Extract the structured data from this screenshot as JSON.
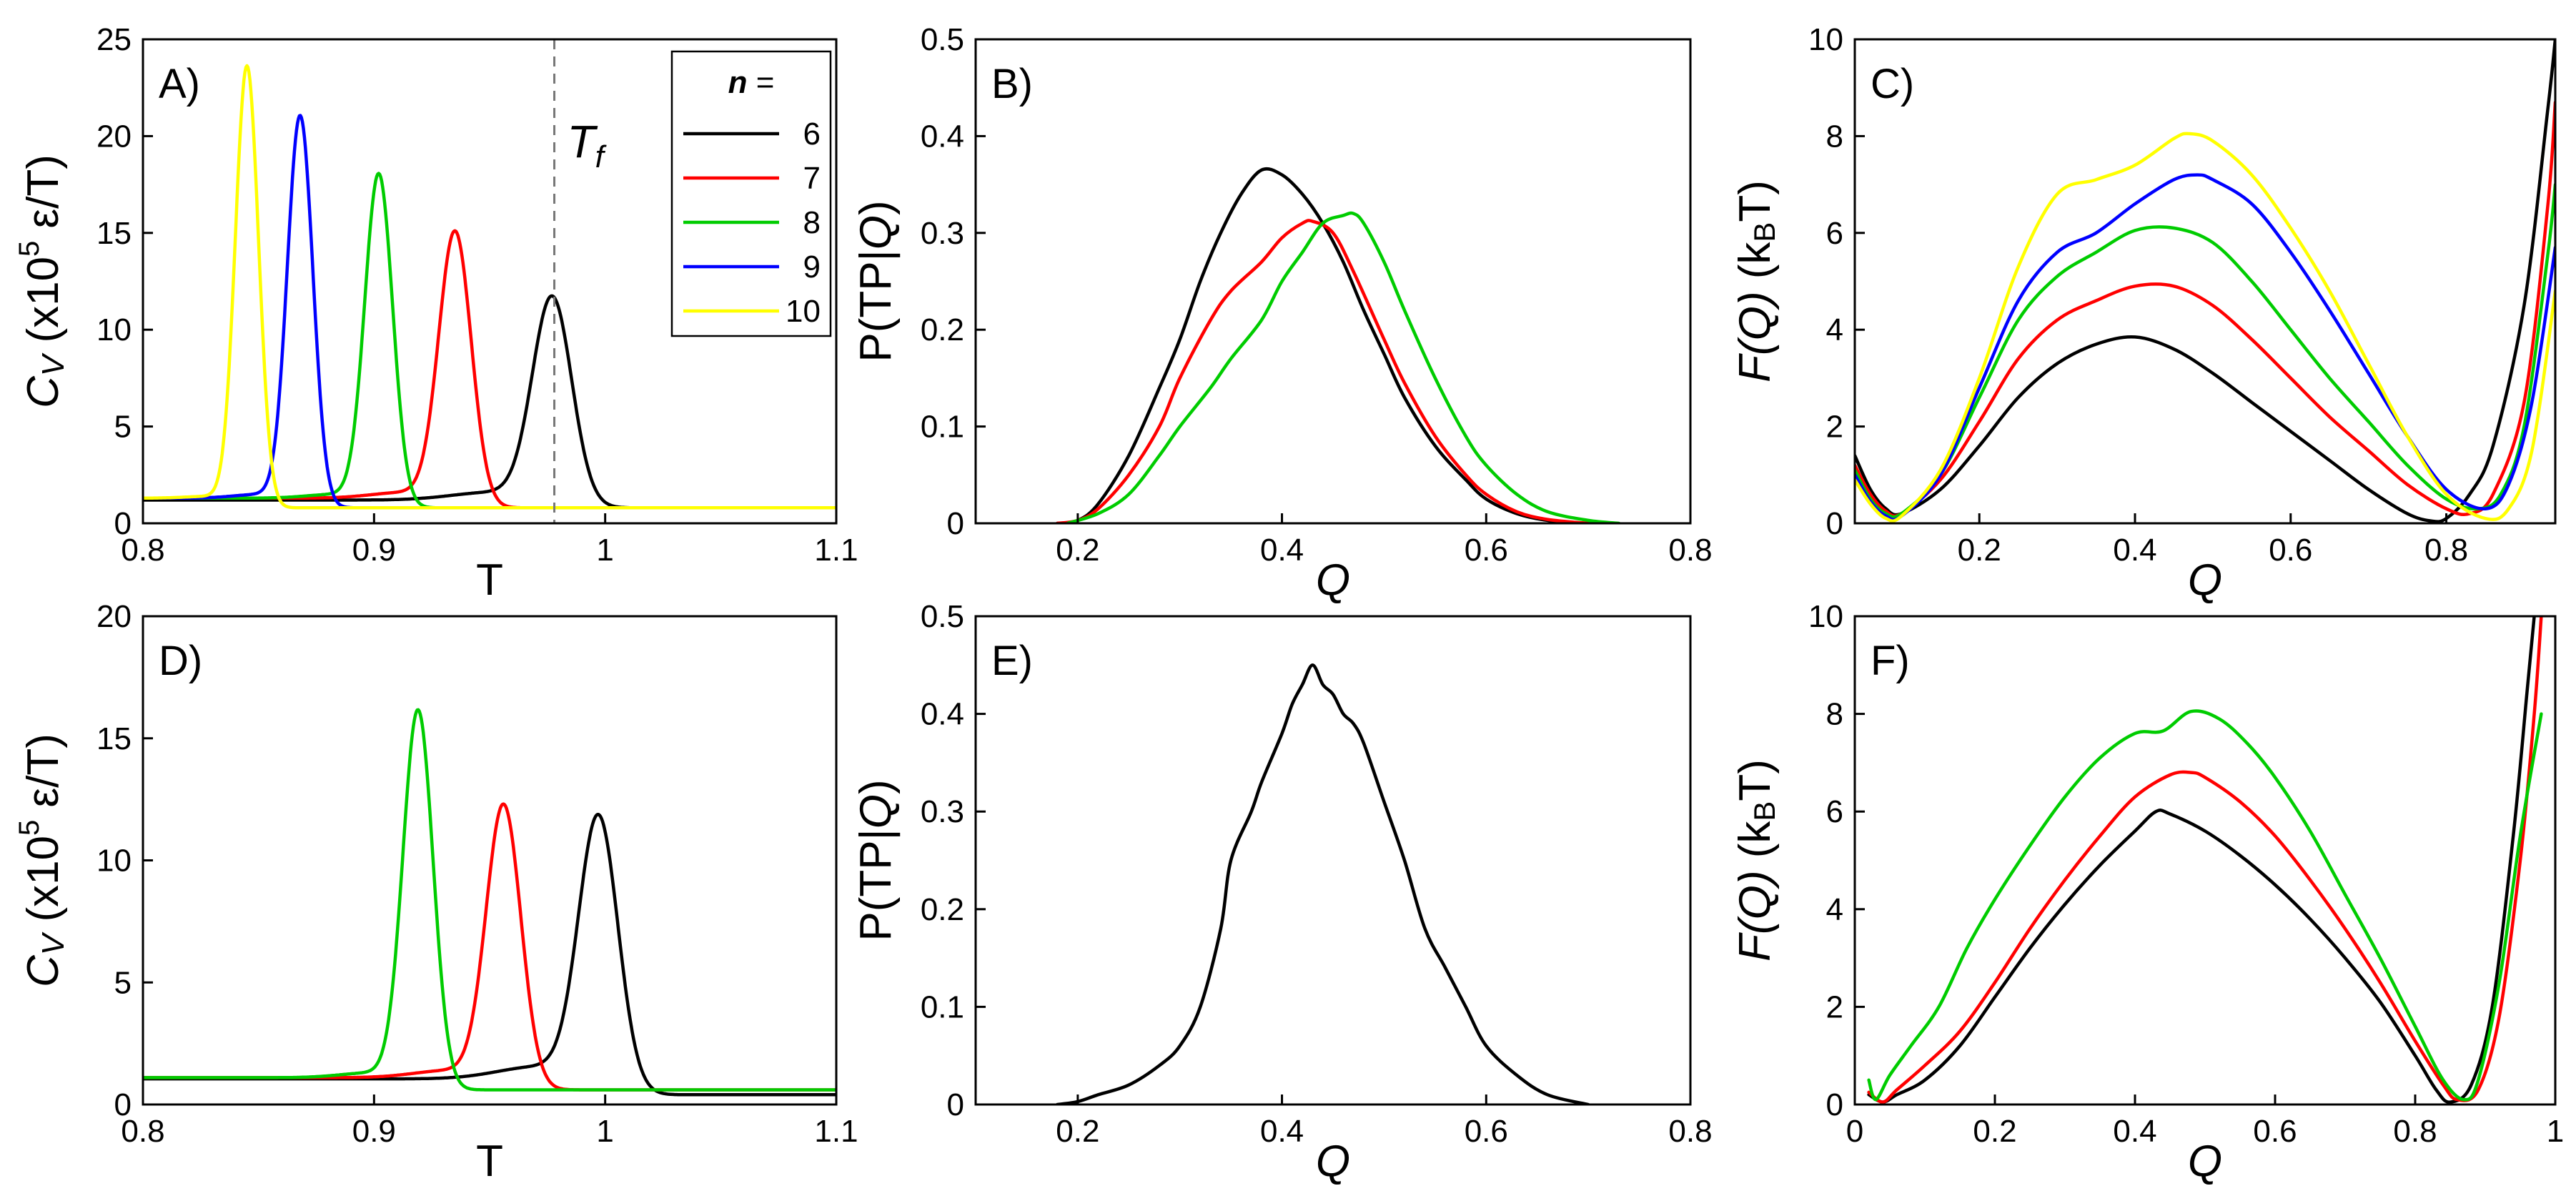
{
  "figure": {
    "colors": {
      "n6": "#000000",
      "n7": "#ff0000",
      "n8": "#00cc00",
      "n9": "#0000ff",
      "n10": "#ffff00",
      "frame": "#000000",
      "dash": "#777777"
    },
    "legend": {
      "title": "n =",
      "placement": "top-right of panel A"
    },
    "annotation": {
      "text": "Tf",
      "panel": "A",
      "x": 0.978
    }
  },
  "chart_data": [
    {
      "id": "A",
      "panel_label": "A)",
      "type": "line",
      "xlabel": "T",
      "ylabel": "CV (x10^5 ε/T)",
      "xlim": [
        0.8,
        1.1
      ],
      "ylim": [
        0,
        25
      ],
      "xticks": [
        "0.8",
        "0.9",
        "1",
        "1.1"
      ],
      "yticks": [
        "0",
        "5",
        "10",
        "15",
        "20",
        "25"
      ],
      "series": [
        {
          "name": "6",
          "color": "#000000",
          "peak": {
            "x": 0.977,
            "y": 11.6
          },
          "width": 0.0085,
          "baseline_left": 1.2,
          "baseline_right": 0.8,
          "shoulder": 0.4
        },
        {
          "name": "7",
          "color": "#ff0000",
          "peak": {
            "x": 0.935,
            "y": 15.0
          },
          "width": 0.007,
          "baseline_left": 1.3,
          "baseline_right": 0.8,
          "shoulder": 0.3
        },
        {
          "name": "8",
          "color": "#00cc00",
          "peak": {
            "x": 0.902,
            "y": 18.0
          },
          "width": 0.006,
          "baseline_left": 1.3,
          "baseline_right": 0.8,
          "shoulder": 0.2
        },
        {
          "name": "9",
          "color": "#0000ff",
          "peak": {
            "x": 0.868,
            "y": 21.0
          },
          "width": 0.0055,
          "baseline_left": 1.3,
          "baseline_right": 0.8,
          "shoulder": 0.2
        },
        {
          "name": "10",
          "color": "#ffff00",
          "peak": {
            "x": 0.845,
            "y": 23.6
          },
          "width": 0.005,
          "baseline_left": 1.3,
          "baseline_right": 0.8,
          "shoulder": 0.1
        }
      ]
    },
    {
      "id": "B",
      "panel_label": "B)",
      "type": "line",
      "xlabel": "Q",
      "ylabel": "P(TP|Q)",
      "xlim": [
        0.1,
        0.8
      ],
      "ylim": [
        0,
        0.5
      ],
      "xticks": [
        "0.2",
        "0.4",
        "0.6",
        "0.8"
      ],
      "yticks": [
        "0",
        "0.1",
        "0.2",
        "0.3",
        "0.4",
        "0.5"
      ],
      "series": [
        {
          "name": "6",
          "color": "#000000",
          "x": [
            0.18,
            0.2,
            0.22,
            0.25,
            0.28,
            0.3,
            0.32,
            0.34,
            0.36,
            0.38,
            0.4,
            0.42,
            0.44,
            0.46,
            0.48,
            0.5,
            0.52,
            0.55,
            0.58,
            0.6,
            0.63,
            0.66,
            0.7
          ],
          "y": [
            0,
            0.003,
            0.02,
            0.07,
            0.14,
            0.19,
            0.25,
            0.3,
            0.34,
            0.365,
            0.36,
            0.34,
            0.31,
            0.27,
            0.22,
            0.175,
            0.13,
            0.08,
            0.045,
            0.025,
            0.01,
            0.003,
            0
          ]
        },
        {
          "name": "7",
          "color": "#ff0000",
          "x": [
            0.18,
            0.2,
            0.22,
            0.25,
            0.28,
            0.3,
            0.33,
            0.35,
            0.38,
            0.4,
            0.42,
            0.43,
            0.45,
            0.47,
            0.5,
            0.52,
            0.55,
            0.58,
            0.6,
            0.63,
            0.66,
            0.7
          ],
          "y": [
            0,
            0.003,
            0.015,
            0.05,
            0.1,
            0.15,
            0.21,
            0.24,
            0.27,
            0.295,
            0.31,
            0.312,
            0.3,
            0.26,
            0.19,
            0.145,
            0.09,
            0.05,
            0.03,
            0.012,
            0.004,
            0
          ]
        },
        {
          "name": "8",
          "color": "#00cc00",
          "x": [
            0.19,
            0.22,
            0.25,
            0.28,
            0.3,
            0.33,
            0.35,
            0.38,
            0.4,
            0.42,
            0.44,
            0.46,
            0.47,
            0.48,
            0.5,
            0.52,
            0.55,
            0.58,
            0.6,
            0.63,
            0.66,
            0.7,
            0.73
          ],
          "y": [
            0,
            0.01,
            0.03,
            0.07,
            0.1,
            0.14,
            0.17,
            0.21,
            0.25,
            0.28,
            0.31,
            0.318,
            0.32,
            0.31,
            0.27,
            0.22,
            0.15,
            0.09,
            0.06,
            0.03,
            0.012,
            0.003,
            0
          ]
        }
      ]
    },
    {
      "id": "C",
      "panel_label": "C)",
      "type": "line",
      "xlabel": "Q",
      "ylabel": "F(Q) (kBT)",
      "xlim": [
        0.04,
        0.94
      ],
      "ylim": [
        0,
        10
      ],
      "xticks": [
        "0.2",
        "0.4",
        "0.6",
        "0.8"
      ],
      "yticks": [
        "0",
        "2",
        "4",
        "6",
        "8",
        "10"
      ],
      "series": [
        {
          "name": "6",
          "color": "#000000",
          "x": [
            0.04,
            0.06,
            0.08,
            0.1,
            0.15,
            0.2,
            0.25,
            0.3,
            0.35,
            0.4,
            0.45,
            0.5,
            0.55,
            0.6,
            0.65,
            0.7,
            0.75,
            0.78,
            0.8,
            0.83,
            0.86,
            0.9,
            0.93,
            0.94
          ],
          "y": [
            1.4,
            0.7,
            0.3,
            0.2,
            0.7,
            1.6,
            2.6,
            3.3,
            3.7,
            3.85,
            3.6,
            3.1,
            2.5,
            1.9,
            1.3,
            0.7,
            0.2,
            0.05,
            0.1,
            0.6,
            1.6,
            4.5,
            8.5,
            10
          ]
        },
        {
          "name": "7",
          "color": "#ff0000",
          "x": [
            0.04,
            0.06,
            0.08,
            0.1,
            0.15,
            0.2,
            0.25,
            0.3,
            0.35,
            0.4,
            0.45,
            0.5,
            0.55,
            0.6,
            0.65,
            0.7,
            0.75,
            0.8,
            0.83,
            0.86,
            0.9,
            0.93,
            0.94
          ],
          "y": [
            1.2,
            0.6,
            0.25,
            0.2,
            0.9,
            2.1,
            3.4,
            4.2,
            4.6,
            4.9,
            4.9,
            4.5,
            3.8,
            3.0,
            2.2,
            1.5,
            0.8,
            0.3,
            0.2,
            0.6,
            2.5,
            6.5,
            8.7
          ]
        },
        {
          "name": "8",
          "color": "#00cc00",
          "x": [
            0.04,
            0.06,
            0.08,
            0.1,
            0.15,
            0.2,
            0.25,
            0.3,
            0.35,
            0.4,
            0.45,
            0.5,
            0.55,
            0.6,
            0.65,
            0.7,
            0.75,
            0.8,
            0.84,
            0.87,
            0.9,
            0.93,
            0.94
          ],
          "y": [
            1.1,
            0.5,
            0.2,
            0.2,
            1.0,
            2.6,
            4.2,
            5.1,
            5.6,
            6.05,
            6.1,
            5.8,
            5.0,
            4.0,
            3.0,
            2.1,
            1.2,
            0.5,
            0.3,
            0.6,
            2.0,
            5.5,
            7.0
          ]
        },
        {
          "name": "9",
          "color": "#0000ff",
          "x": [
            0.04,
            0.06,
            0.08,
            0.1,
            0.15,
            0.2,
            0.25,
            0.3,
            0.35,
            0.4,
            0.45,
            0.48,
            0.5,
            0.55,
            0.6,
            0.65,
            0.7,
            0.75,
            0.8,
            0.85,
            0.88,
            0.91,
            0.94
          ],
          "y": [
            1.0,
            0.45,
            0.15,
            0.15,
            1.0,
            2.8,
            4.6,
            5.6,
            6.0,
            6.6,
            7.1,
            7.2,
            7.1,
            6.6,
            5.6,
            4.4,
            3.1,
            1.8,
            0.7,
            0.3,
            0.8,
            2.5,
            5.7
          ]
        },
        {
          "name": "10",
          "color": "#ffff00",
          "x": [
            0.04,
            0.06,
            0.08,
            0.1,
            0.15,
            0.2,
            0.25,
            0.3,
            0.35,
            0.4,
            0.45,
            0.47,
            0.5,
            0.55,
            0.6,
            0.65,
            0.7,
            0.75,
            0.8,
            0.85,
            0.88,
            0.91,
            0.94
          ],
          "y": [
            0.9,
            0.4,
            0.1,
            0.15,
            1.1,
            3.0,
            5.3,
            6.8,
            7.1,
            7.4,
            7.95,
            8.05,
            7.9,
            7.2,
            6.1,
            4.8,
            3.3,
            1.8,
            0.6,
            0.1,
            0.3,
            1.5,
            4.8
          ]
        }
      ]
    },
    {
      "id": "D",
      "panel_label": "D)",
      "type": "line",
      "xlabel": "T",
      "ylabel": "CV (x10^5 ε/T)",
      "xlim": [
        0.8,
        1.1
      ],
      "ylim": [
        0,
        20
      ],
      "xticks": [
        "0.8",
        "0.9",
        "1",
        "1.1"
      ],
      "yticks": [
        "0",
        "5",
        "10",
        "15",
        "20"
      ],
      "series": [
        {
          "name": "6",
          "color": "#000000",
          "peak": {
            "x": 0.997,
            "y": 11.7
          },
          "width": 0.0085,
          "baseline_left": 1.05,
          "baseline_right": 0.4,
          "shoulder": 0.5
        },
        {
          "name": "7",
          "color": "#ff0000",
          "peak": {
            "x": 0.956,
            "y": 12.2
          },
          "width": 0.0075,
          "baseline_left": 1.1,
          "baseline_right": 0.6,
          "shoulder": 0.3
        },
        {
          "name": "8",
          "color": "#00cc00",
          "peak": {
            "x": 0.919,
            "y": 16.1
          },
          "width": 0.0065,
          "baseline_left": 1.1,
          "baseline_right": 0.6,
          "shoulder": 0.2
        }
      ]
    },
    {
      "id": "E",
      "panel_label": "E)",
      "type": "line",
      "xlabel": "Q",
      "ylabel": "P(TP|Q)",
      "xlim": [
        0.1,
        0.8
      ],
      "ylim": [
        0,
        0.5
      ],
      "xticks": [
        "0.2",
        "0.4",
        "0.6",
        "0.8"
      ],
      "yticks": [
        "0",
        "0.1",
        "0.2",
        "0.3",
        "0.4",
        "0.5"
      ],
      "series": [
        {
          "name": "6",
          "color": "#000000",
          "x": [
            0.18,
            0.2,
            0.22,
            0.25,
            0.28,
            0.3,
            0.32,
            0.34,
            0.35,
            0.37,
            0.38,
            0.4,
            0.41,
            0.42,
            0.43,
            0.44,
            0.45,
            0.46,
            0.47,
            0.48,
            0.5,
            0.52,
            0.54,
            0.56,
            0.58,
            0.6,
            0.63,
            0.66,
            0.7
          ],
          "y": [
            0,
            0.003,
            0.01,
            0.02,
            0.04,
            0.06,
            0.1,
            0.18,
            0.25,
            0.3,
            0.33,
            0.38,
            0.41,
            0.43,
            0.45,
            0.43,
            0.42,
            0.4,
            0.39,
            0.37,
            0.31,
            0.25,
            0.18,
            0.14,
            0.1,
            0.06,
            0.03,
            0.01,
            0
          ]
        }
      ]
    },
    {
      "id": "F",
      "panel_label": "F)",
      "type": "line",
      "xlabel": "Q",
      "ylabel": "F(Q) (kBT)",
      "xlim": [
        0,
        1
      ],
      "ylim": [
        0,
        10
      ],
      "xticks": [
        "0",
        "0.2",
        "0.4",
        "0.6",
        "0.8",
        "1"
      ],
      "yticks": [
        "0",
        "2",
        "4",
        "6",
        "8",
        "10"
      ],
      "series": [
        {
          "name": "6",
          "color": "#000000",
          "x": [
            0.02,
            0.04,
            0.06,
            0.1,
            0.15,
            0.2,
            0.25,
            0.3,
            0.35,
            0.4,
            0.43,
            0.45,
            0.5,
            0.55,
            0.6,
            0.65,
            0.7,
            0.75,
            0.8,
            0.83,
            0.85,
            0.88,
            0.91,
            0.94,
            0.96,
            0.97
          ],
          "y": [
            0.2,
            0.05,
            0.2,
            0.5,
            1.2,
            2.2,
            3.2,
            4.1,
            4.9,
            5.6,
            6.0,
            5.95,
            5.6,
            5.1,
            4.5,
            3.8,
            3.0,
            2.1,
            1.0,
            0.3,
            0.05,
            0.4,
            2.0,
            5.5,
            8.5,
            10
          ]
        },
        {
          "name": "7",
          "color": "#ff0000",
          "x": [
            0.02,
            0.04,
            0.06,
            0.1,
            0.15,
            0.2,
            0.25,
            0.3,
            0.35,
            0.4,
            0.45,
            0.48,
            0.5,
            0.55,
            0.6,
            0.65,
            0.7,
            0.75,
            0.8,
            0.84,
            0.86,
            0.89,
            0.92,
            0.95,
            0.97,
            0.98
          ],
          "y": [
            0.25,
            0.05,
            0.3,
            0.8,
            1.5,
            2.5,
            3.6,
            4.6,
            5.5,
            6.3,
            6.75,
            6.8,
            6.7,
            6.2,
            5.5,
            4.6,
            3.6,
            2.5,
            1.3,
            0.4,
            0.1,
            0.3,
            1.8,
            5.0,
            8.0,
            10
          ]
        },
        {
          "name": "8",
          "color": "#00cc00",
          "x": [
            0.02,
            0.03,
            0.05,
            0.08,
            0.12,
            0.16,
            0.2,
            0.25,
            0.3,
            0.35,
            0.4,
            0.44,
            0.48,
            0.52,
            0.56,
            0.6,
            0.65,
            0.7,
            0.75,
            0.8,
            0.84,
            0.87,
            0.89,
            0.92,
            0.95,
            0.98
          ],
          "y": [
            0.5,
            0.1,
            0.6,
            1.2,
            2.0,
            3.2,
            4.2,
            5.3,
            6.3,
            7.1,
            7.6,
            7.65,
            8.05,
            7.9,
            7.4,
            6.7,
            5.6,
            4.3,
            3.0,
            1.6,
            0.5,
            0.1,
            0.5,
            2.5,
            5.5,
            8.0
          ]
        }
      ]
    }
  ]
}
